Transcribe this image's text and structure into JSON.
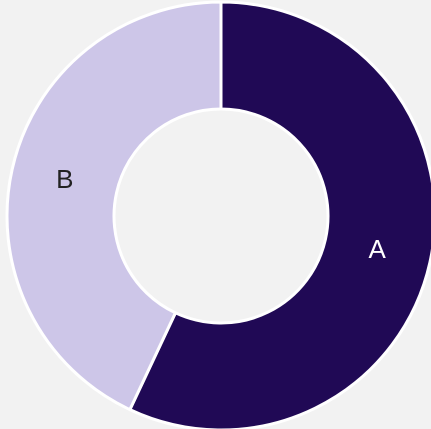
{
  "chart_data": {
    "type": "pie",
    "donut": true,
    "categories": [
      "A",
      "B"
    ],
    "values": [
      57,
      43
    ],
    "colors": [
      "#200955",
      "#cdc6e8"
    ]
  }
}
